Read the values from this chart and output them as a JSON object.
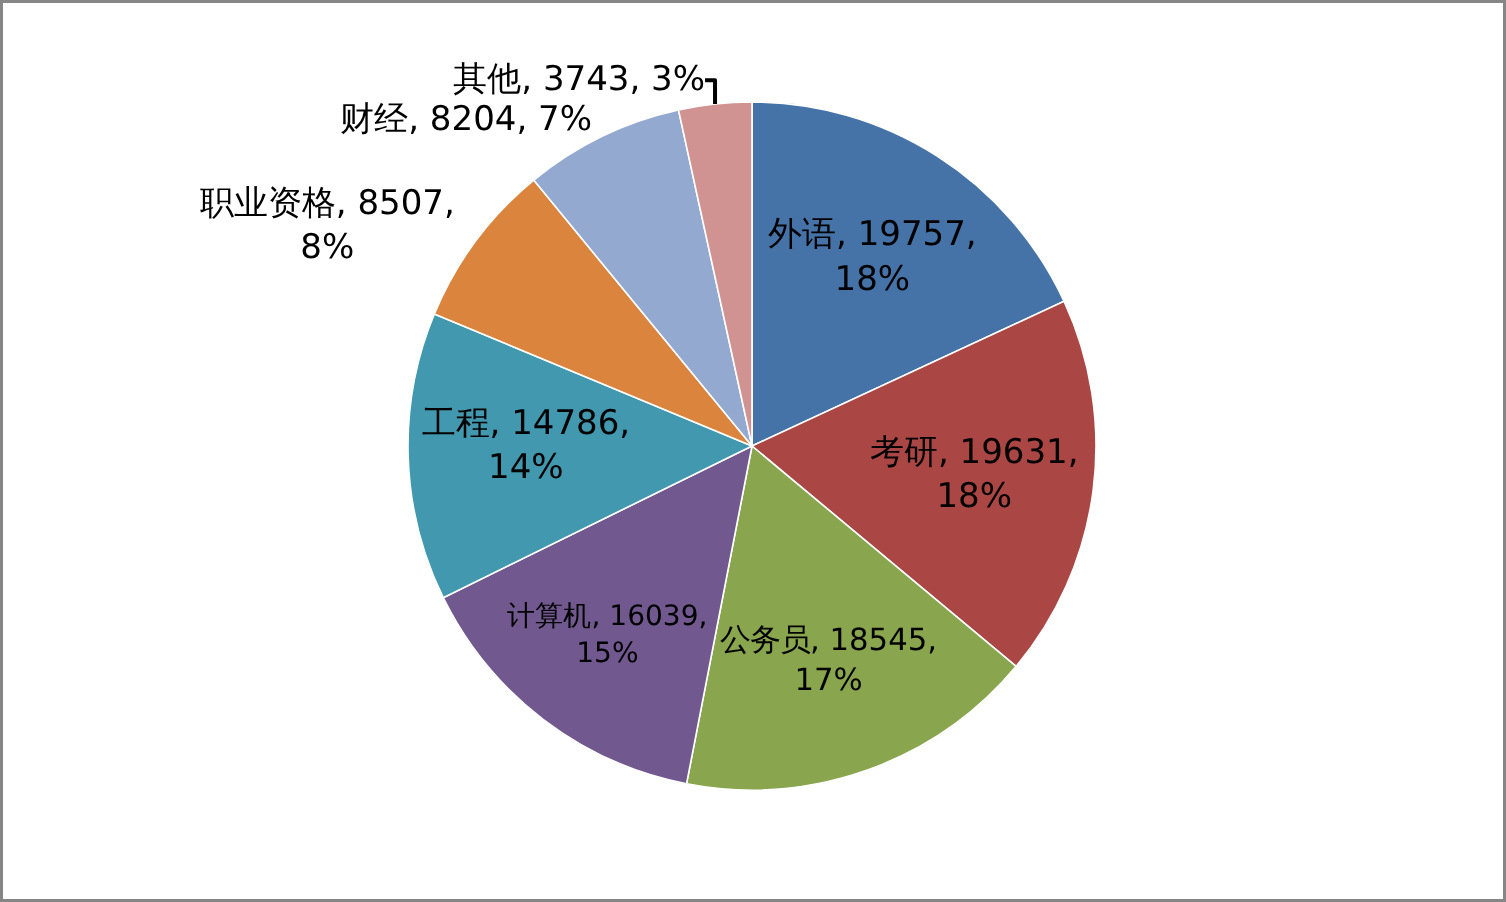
{
  "chart_data": {
    "type": "pie",
    "categories": [
      "外语",
      "考研",
      "公务员",
      "计算机",
      "工程",
      "职业资格",
      "财经",
      "其他"
    ],
    "values": [
      19757,
      19631,
      18545,
      16039,
      14786,
      8507,
      8204,
      3743
    ],
    "colors": [
      "#4572a7",
      "#aa4643",
      "#89a54e",
      "#71588f",
      "#4198af",
      "#db843d",
      "#93a9cf",
      "#d19392"
    ],
    "value_labels": [
      "19757, 18%",
      "19631, 18%",
      "18545, 17%",
      "16039, 15%",
      "14786, 14%",
      "8507, 8%",
      "8204, 7%",
      "3743, 3%"
    ],
    "legend": false
  }
}
